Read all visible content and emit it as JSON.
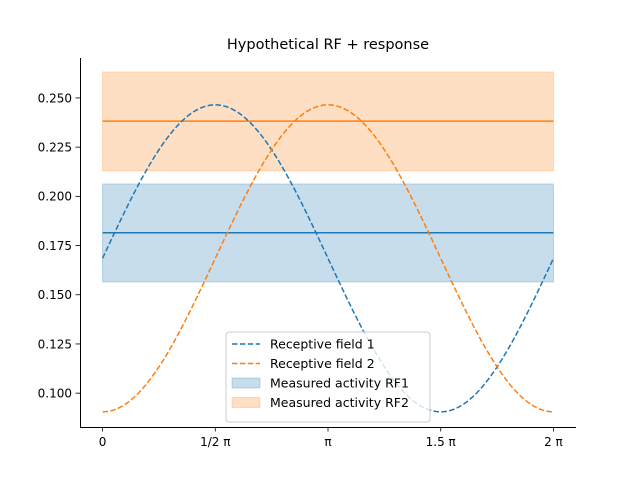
{
  "chart_data": {
    "type": "line",
    "title": "Hypothetical RF + response",
    "xlabel": "",
    "ylabel": "",
    "xlim": [
      -0.3142,
      6.5973
    ],
    "ylim": [
      0.0828,
      0.2703
    ],
    "xticks": [
      {
        "value": 0,
        "label": "0"
      },
      {
        "value": 1.5708,
        "label": "1/2 π"
      },
      {
        "value": 3.1416,
        "label": "π"
      },
      {
        "value": 4.7124,
        "label": "1.5 π"
      },
      {
        "value": 6.2832,
        "label": "2 π"
      }
    ],
    "yticks": [
      {
        "value": 0.1,
        "label": "0.100"
      },
      {
        "value": 0.125,
        "label": "0.125"
      },
      {
        "value": 0.15,
        "label": "0.150"
      },
      {
        "value": 0.175,
        "label": "0.175"
      },
      {
        "value": 0.2,
        "label": "0.200"
      },
      {
        "value": 0.225,
        "label": "0.225"
      },
      {
        "value": 0.25,
        "label": "0.250"
      }
    ],
    "grid": false,
    "legend_position": "lower-center",
    "series": [
      {
        "name": "Receptive field 1",
        "kind": "dashed-line",
        "color": "#1f77b4",
        "function": "mean + amp*sin(x)",
        "mean": 0.1685,
        "amp": 0.078,
        "x_range": [
          0,
          6.2832
        ]
      },
      {
        "name": "Receptive field 2",
        "kind": "dashed-line",
        "color": "#ff7f0e",
        "function": "mean - amp*cos(x)",
        "mean": 0.1685,
        "amp": 0.078,
        "x_range": [
          0,
          6.2832
        ]
      },
      {
        "name": "Measured activity RF1",
        "kind": "band",
        "color": "#1f77b4",
        "center": 0.1815,
        "low": 0.1565,
        "high": 0.2063,
        "x_range": [
          0,
          6.2832
        ]
      },
      {
        "name": "Measured activity RF2",
        "kind": "band",
        "color": "#ff7f0e",
        "center": 0.2382,
        "low": 0.213,
        "high": 0.2632,
        "x_range": [
          0,
          6.2832
        ]
      }
    ]
  },
  "legend": {
    "items": [
      {
        "label": "Receptive field 1",
        "color": "#1f77b4",
        "kind": "line"
      },
      {
        "label": "Receptive field 2",
        "color": "#ff7f0e",
        "kind": "line"
      },
      {
        "label": "Measured activity RF1",
        "color": "#1f77b4",
        "kind": "patch"
      },
      {
        "label": "Measured activity RF2",
        "color": "#ff7f0e",
        "kind": "patch"
      }
    ]
  }
}
